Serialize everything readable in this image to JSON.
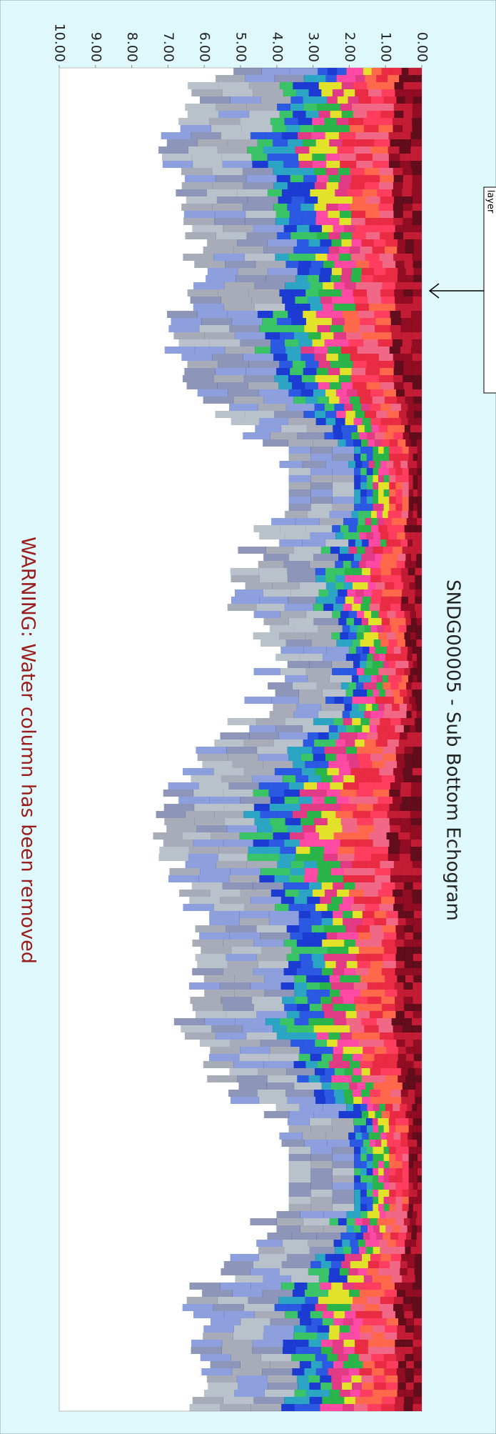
{
  "chart_data": {
    "type": "echogram",
    "title": "SNDG00005 - Sub Bottom Echogram",
    "warning": "WARNING: Water column has been removed",
    "callout": "layer",
    "ylim": [
      0,
      10
    ],
    "yticks": [
      {
        "value": 0,
        "label": "0.00"
      },
      {
        "value": 1,
        "label": "1.00"
      },
      {
        "value": 2,
        "label": "2.00"
      },
      {
        "value": 3,
        "label": "3.00"
      },
      {
        "value": 4,
        "label": "4.00"
      },
      {
        "value": 5,
        "label": "5.00"
      },
      {
        "value": 6,
        "label": "6.00"
      },
      {
        "value": 7,
        "label": "7.00"
      },
      {
        "value": 8,
        "label": "8.00"
      },
      {
        "value": 9,
        "label": "9.00"
      },
      {
        "value": 10,
        "label": "10.00"
      }
    ]
  }
}
